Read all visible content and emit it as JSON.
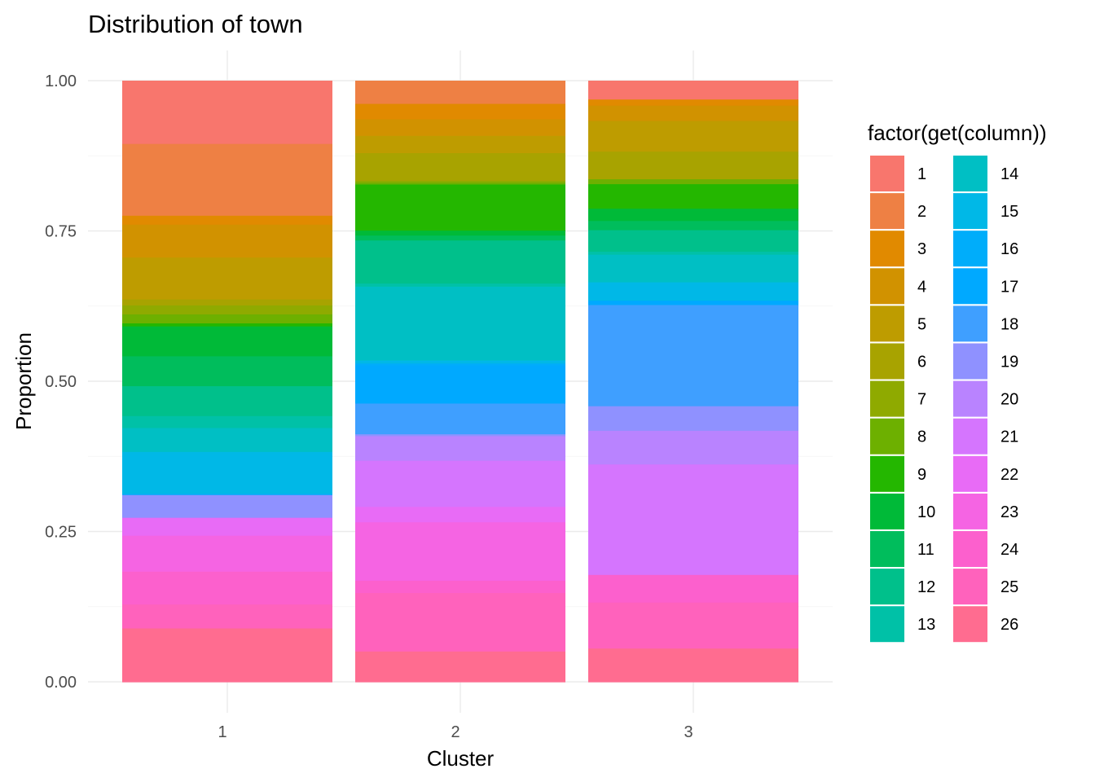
{
  "chart_data": {
    "type": "bar",
    "stacked": true,
    "title": "Distribution of town",
    "xlabel": "Cluster",
    "ylabel": "Proportion",
    "ylim": [
      0,
      1
    ],
    "yticks": [
      "0.00",
      "0.25",
      "0.50",
      "0.75",
      "1.00"
    ],
    "categories": [
      "1",
      "2",
      "3"
    ],
    "legend": {
      "title": "factor(get(column))",
      "position": "right",
      "columns": 2
    },
    "grid": true,
    "series": [
      {
        "name": "1",
        "color": "#F8766D",
        "values": [
          0.105,
          0.0,
          0.03
        ]
      },
      {
        "name": "2",
        "color": "#EE8044",
        "values": [
          0.12,
          0.037,
          0.0
        ]
      },
      {
        "name": "3",
        "color": "#E18A00",
        "values": [
          0.015,
          0.025,
          0.01
        ]
      },
      {
        "name": "4",
        "color": "#D19200",
        "values": [
          0.055,
          0.027,
          0.025
        ]
      },
      {
        "name": "5",
        "color": "#BE9C00",
        "values": [
          0.07,
          0.028,
          0.05
        ]
      },
      {
        "name": "6",
        "color": "#A8A300",
        "values": [
          0.01,
          0.045,
          0.045
        ]
      },
      {
        "name": "7",
        "color": "#8FAA00",
        "values": [
          0.015,
          0.003,
          0.0
        ]
      },
      {
        "name": "8",
        "color": "#6DB000",
        "values": [
          0.015,
          0.003,
          0.008
        ]
      },
      {
        "name": "9",
        "color": "#24B700",
        "values": [
          0.005,
          0.075,
          0.04
        ]
      },
      {
        "name": "10",
        "color": "#00BA38",
        "values": [
          0.05,
          0.008,
          0.02
        ]
      },
      {
        "name": "11",
        "color": "#00BD5C",
        "values": [
          0.05,
          0.008,
          0.015
        ]
      },
      {
        "name": "12",
        "color": "#00C08B",
        "values": [
          0.05,
          0.07,
          0.035
        ]
      },
      {
        "name": "13",
        "color": "#00C1A7",
        "values": [
          0.02,
          0.005,
          0.005
        ]
      },
      {
        "name": "14",
        "color": "#00BFC4",
        "values": [
          0.04,
          0.12,
          0.045
        ]
      },
      {
        "name": "15",
        "color": "#00B8E7",
        "values": [
          0.07,
          0.005,
          0.03
        ]
      },
      {
        "name": "16",
        "color": "#00ADFA",
        "values": [
          0.002,
          0.003,
          0.0
        ]
      },
      {
        "name": "17",
        "color": "#00A9FF",
        "values": [
          0.0,
          0.062,
          0.007
        ]
      },
      {
        "name": "18",
        "color": "#3F9FFF",
        "values": [
          0.0,
          0.05,
          0.165
        ]
      },
      {
        "name": "19",
        "color": "#8F91FF",
        "values": [
          0.038,
          0.003,
          0.04
        ]
      },
      {
        "name": "20",
        "color": "#B983FF",
        "values": [
          0.0,
          0.04,
          0.055
        ]
      },
      {
        "name": "21",
        "color": "#D575FE",
        "values": [
          0.0,
          0.075,
          0.18
        ]
      },
      {
        "name": "22",
        "color": "#E86BF6",
        "values": [
          0.03,
          0.025,
          0.0
        ]
      },
      {
        "name": "23",
        "color": "#F564E3",
        "values": [
          0.06,
          0.095,
          0.0
        ]
      },
      {
        "name": "24",
        "color": "#FC60CD",
        "values": [
          0.055,
          0.02,
          0.045
        ]
      },
      {
        "name": "25",
        "color": "#FF62BC",
        "values": [
          0.04,
          0.095,
          0.075
        ]
      },
      {
        "name": "26",
        "color": "#FF6C90",
        "values": [
          0.09,
          0.05,
          0.055
        ]
      }
    ]
  }
}
